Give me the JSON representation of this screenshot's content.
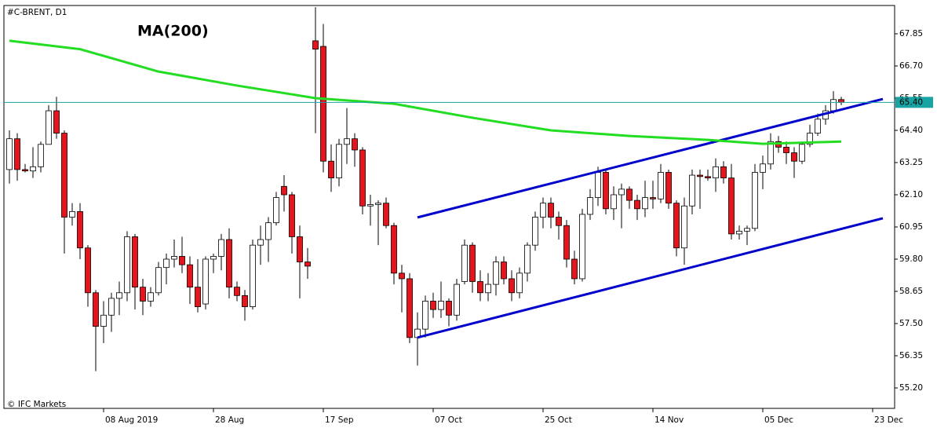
{
  "chart_data": {
    "type": "candlestick",
    "title": "#C-BRENT, D1",
    "watermark": "© IFC Markets",
    "ylim": [
      54.47,
      68.86
    ],
    "yticks": [
      67.85,
      {
        "value": 66.7,
        "label": "66.70"
      },
      65.55,
      {
        "value": 64.4,
        "label": "64.40"
      },
      63.25,
      {
        "value": 62.1,
        "label": "62.10"
      },
      60.95,
      {
        "value": 59.8,
        "label": "59.80"
      },
      58.65,
      {
        "value": 57.5,
        "label": "57.50"
      },
      56.35,
      {
        "value": 55.2,
        "label": "55.20"
      }
    ],
    "xlim": [
      -0.7,
      112.8
    ],
    "xticks": [
      {
        "value": 12,
        "label": "08 Aug 2019"
      },
      {
        "value": 26,
        "label": "28 Aug"
      },
      {
        "value": 40,
        "label": "17 Sep"
      },
      {
        "value": 54,
        "label": "07 Oct"
      },
      {
        "value": 68,
        "label": "25 Oct"
      },
      {
        "value": 82,
        "label": "14 Nov"
      },
      {
        "value": 96,
        "label": "05 Dec"
      },
      {
        "value": 110,
        "label": "23 Dec"
      }
    ],
    "up_color": "#ffffff",
    "down_color": "#e8141c",
    "open": [
      63.0,
      64.1,
      63.0,
      62.95,
      63.1,
      63.9,
      65.1,
      64.3,
      61.3,
      61.5,
      60.2,
      58.6,
      57.4,
      57.8,
      58.4,
      58.6,
      60.6,
      58.8,
      58.3,
      58.6,
      59.5,
      59.8,
      59.9,
      59.6,
      58.8,
      58.2,
      59.8,
      59.9,
      60.5,
      58.8,
      58.5,
      58.1,
      60.3,
      60.5,
      61.1,
      62.4,
      62.1,
      60.6,
      59.7,
      67.6,
      67.4,
      63.3,
      62.7,
      63.9,
      64.1,
      63.7,
      61.7,
      61.75,
      61.8,
      61.0,
      59.3,
      59.1,
      57.0,
      57.3,
      58.3,
      58.0,
      58.3,
      57.8,
      59.0,
      60.3,
      59.0,
      58.6,
      58.9,
      59.7,
      59.1,
      58.6,
      59.3,
      60.3,
      61.3,
      61.8,
      61.3,
      61.0,
      59.8,
      59.1,
      61.4,
      62.0,
      62.9,
      61.6,
      62.1,
      62.3,
      61.9,
      61.6,
      62.0,
      61.95,
      62.9,
      61.8,
      60.2,
      61.7,
      62.8,
      62.75,
      62.7,
      63.1,
      62.7,
      60.7,
      60.8,
      60.9,
      62.9,
      63.2,
      64.0,
      63.8,
      63.6,
      63.3,
      63.9,
      64.3,
      64.8,
      65.1,
      65.5
    ],
    "high": [
      64.4,
      64.3,
      63.2,
      63.8,
      64.0,
      65.3,
      65.6,
      64.4,
      61.8,
      61.8,
      60.3,
      58.7,
      58.3,
      58.6,
      59.0,
      60.8,
      60.7,
      59.1,
      58.8,
      59.7,
      60.0,
      60.5,
      60.6,
      59.9,
      59.8,
      59.9,
      60.0,
      60.7,
      60.9,
      59.0,
      58.7,
      60.5,
      61.0,
      61.3,
      62.2,
      62.8,
      62.2,
      61.0,
      60.2,
      68.8,
      68.2,
      63.9,
      64.1,
      65.2,
      64.3,
      63.8,
      62.1,
      61.9,
      62.0,
      61.1,
      59.6,
      59.3,
      57.9,
      58.5,
      58.6,
      59.0,
      58.4,
      59.1,
      60.5,
      60.4,
      59.4,
      59.3,
      59.9,
      59.9,
      59.4,
      59.5,
      60.4,
      61.5,
      62.0,
      62.0,
      61.5,
      61.2,
      60.1,
      61.6,
      62.3,
      63.1,
      63.0,
      62.4,
      62.5,
      62.4,
      62.1,
      62.6,
      62.6,
      63.2,
      63.0,
      61.9,
      62.0,
      63.0,
      63.0,
      63.0,
      63.4,
      63.3,
      63.2,
      61.0,
      61.0,
      63.2,
      63.5,
      64.3,
      64.2,
      64.0,
      63.8,
      64.0,
      64.6,
      65.0,
      65.3,
      65.8,
      65.6
    ],
    "low": [
      62.5,
      62.6,
      62.9,
      62.7,
      62.9,
      63.9,
      64.1,
      60.0,
      61.0,
      59.8,
      58.1,
      55.8,
      56.8,
      57.2,
      57.8,
      58.3,
      58.0,
      57.8,
      58.1,
      58.5,
      58.9,
      59.5,
      59.3,
      58.2,
      57.9,
      58.0,
      59.3,
      59.4,
      58.4,
      58.3,
      57.6,
      58.0,
      59.6,
      59.7,
      61.0,
      61.5,
      60.0,
      58.4,
      59.1,
      64.3,
      62.9,
      62.2,
      62.4,
      63.2,
      63.1,
      61.4,
      61.0,
      60.3,
      60.9,
      58.9,
      57.9,
      56.8,
      56.0,
      57.0,
      57.7,
      57.7,
      57.4,
      57.6,
      58.9,
      58.6,
      58.3,
      58.3,
      58.5,
      58.9,
      58.3,
      58.4,
      59.0,
      60.1,
      60.9,
      60.9,
      60.5,
      59.5,
      58.9,
      59.0,
      61.2,
      61.7,
      61.4,
      61.2,
      60.9,
      61.6,
      61.2,
      61.3,
      61.6,
      61.8,
      61.6,
      59.9,
      59.6,
      61.4,
      61.6,
      62.6,
      62.2,
      62.5,
      60.5,
      60.5,
      60.3,
      60.8,
      62.3,
      63.0,
      63.6,
      63.2,
      62.7,
      63.2,
      63.8,
      64.2,
      64.6,
      65.0,
      65.3
    ],
    "close": [
      64.1,
      63.0,
      62.95,
      63.1,
      63.9,
      65.1,
      64.3,
      61.3,
      61.5,
      60.2,
      58.6,
      57.4,
      57.8,
      58.4,
      58.6,
      60.6,
      58.8,
      58.3,
      58.6,
      59.5,
      59.8,
      59.9,
      59.6,
      58.8,
      58.1,
      59.8,
      59.9,
      60.5,
      58.8,
      58.5,
      58.1,
      60.3,
      60.5,
      61.1,
      62.0,
      62.1,
      60.6,
      59.7,
      59.55,
      67.3,
      63.3,
      62.7,
      63.9,
      64.1,
      63.7,
      61.7,
      61.75,
      61.8,
      61.0,
      59.3,
      59.1,
      57.0,
      57.3,
      58.3,
      58.0,
      58.3,
      57.8,
      58.9,
      60.3,
      59.0,
      58.6,
      58.9,
      59.7,
      59.1,
      58.6,
      59.3,
      60.3,
      61.3,
      61.8,
      61.3,
      61.0,
      59.8,
      59.1,
      61.4,
      62.0,
      62.9,
      61.6,
      62.1,
      62.3,
      61.9,
      61.6,
      62.0,
      61.95,
      62.9,
      61.8,
      60.2,
      61.7,
      62.8,
      62.75,
      62.7,
      63.1,
      62.7,
      60.7,
      60.8,
      60.9,
      62.9,
      63.2,
      64.0,
      63.8,
      63.6,
      63.3,
      63.9,
      64.3,
      64.8,
      65.1,
      65.5,
      65.4
    ],
    "series": [
      {
        "name": "MA(200)",
        "color": "#22dd22",
        "x": [
          0,
          9,
          19,
          29,
          39,
          49,
          59,
          69,
          79,
          89,
          96,
          106
        ],
        "values": [
          67.6,
          67.3,
          66.5,
          66.0,
          65.55,
          65.35,
          64.85,
          64.4,
          64.2,
          64.06,
          63.92,
          64.0
        ]
      }
    ],
    "trendlines": [
      {
        "color": "#0000cc",
        "x": [
          52,
          111.3
        ],
        "values": [
          61.29,
          65.52
        ]
      },
      {
        "color": "#0000cc",
        "x": [
          52,
          111.3
        ],
        "values": [
          57.0,
          61.26
        ]
      }
    ],
    "last_price": {
      "value": 65.4,
      "label": "65.40",
      "color": "#1aa3a3"
    }
  }
}
